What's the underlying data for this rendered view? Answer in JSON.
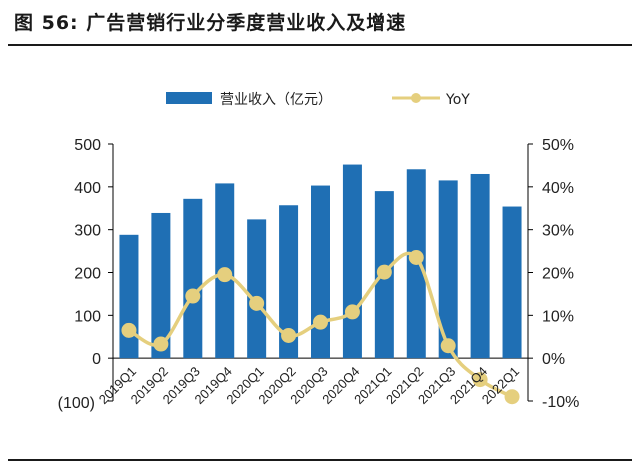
{
  "title": "图 56: 广告营销行业分季度营业收入及增速",
  "colors": {
    "bar": "#1f6fb4",
    "line": "#e5cf7e",
    "text": "#222222",
    "negative_label": "#cc0000"
  },
  "chart_data": {
    "type": "bar",
    "categories": [
      "2019Q1",
      "2019Q2",
      "2019Q3",
      "2019Q4",
      "2020Q1",
      "2020Q2",
      "2020Q3",
      "2020Q4",
      "2021Q1",
      "2021Q2",
      "2021Q3",
      "2021Q4",
      "2022Q1"
    ],
    "series": [
      {
        "name": "营业收入（亿元）",
        "type": "bar",
        "axis": "left",
        "values": [
          288,
          339,
          372,
          408,
          324,
          357,
          403,
          452,
          390,
          441,
          415,
          430,
          354
        ]
      },
      {
        "name": "YoY",
        "type": "line",
        "axis": "right",
        "values": [
          6.5,
          3.3,
          14.5,
          19.5,
          12.8,
          5.3,
          8.4,
          10.8,
          20.1,
          23.5,
          2.9,
          -5.0,
          -9.0
        ]
      }
    ],
    "y_left": {
      "ylim": [
        -100,
        500
      ],
      "ticks": [
        "(100)",
        "0",
        "100",
        "200",
        "300",
        "400",
        "500"
      ]
    },
    "y_right": {
      "ylim": [
        -10,
        50
      ],
      "ticks": [
        "-10%",
        "0%",
        "10%",
        "20%",
        "30%",
        "40%",
        "50%"
      ]
    },
    "legend": {
      "position": "top",
      "items": [
        "营业收入（亿元）",
        "YoY"
      ]
    },
    "grid": false
  }
}
